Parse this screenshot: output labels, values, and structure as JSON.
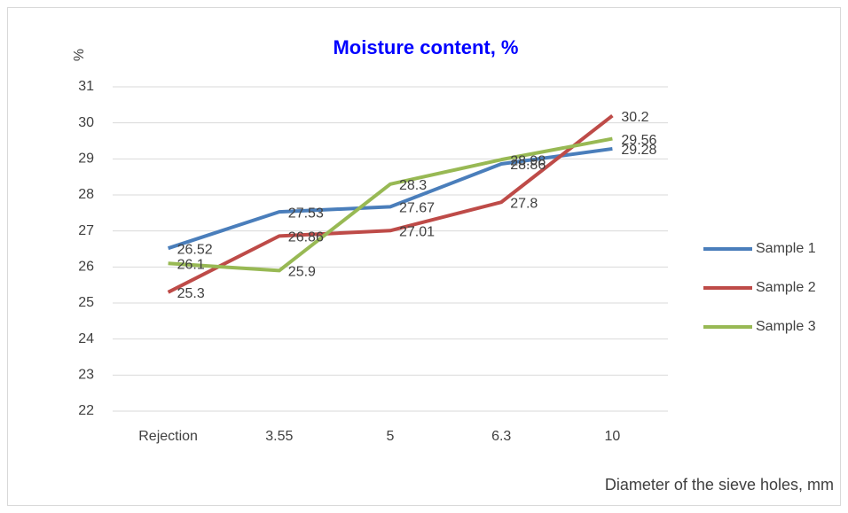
{
  "chart_data": {
    "type": "line",
    "title": "Moisture content, %",
    "y_label": "%",
    "x_label": "Diameter of the sieve holes, mm",
    "categories": [
      "Rejection",
      "3.55",
      "5",
      "6.3",
      "10"
    ],
    "series": [
      {
        "name": "Sample 1",
        "color": "#4a7ebb",
        "values": [
          26.52,
          27.53,
          27.67,
          28.86,
          29.28
        ]
      },
      {
        "name": "Sample 2",
        "color": "#be4b48",
        "values": [
          25.3,
          26.86,
          27.01,
          27.8,
          30.2
        ]
      },
      {
        "name": "Sample 3",
        "color": "#98b954",
        "values": [
          26.1,
          25.9,
          28.3,
          28.98,
          29.56
        ]
      }
    ],
    "ylim": [
      22,
      31
    ],
    "yticks": [
      22,
      23,
      24,
      25,
      26,
      27,
      28,
      29,
      30,
      31
    ],
    "grid": true,
    "legend": "right"
  }
}
